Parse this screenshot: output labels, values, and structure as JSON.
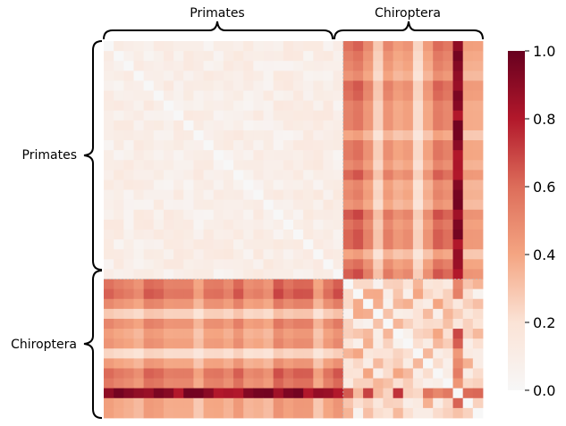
{
  "chart_data": {
    "type": "heatmap",
    "title": "",
    "group_labels_top": [
      "Primates",
      "Chiroptera"
    ],
    "group_labels_left": [
      "Primates",
      "Chiroptera"
    ],
    "group_sizes": [
      24,
      14
    ],
    "colorbar": {
      "min": 0.0,
      "max": 1.0,
      "ticks": [
        "0.0",
        "0.2",
        "0.4",
        "0.6",
        "0.8",
        "1.0"
      ],
      "colormap": "RdBu_r (white to dark red)"
    },
    "block_means": {
      "primates_primates": 0.08,
      "primates_chiroptera": 0.4,
      "chiroptera_primates": 0.4,
      "chiroptera_chiroptera": 0.3
    },
    "highlighted_row": {
      "group": "Chiroptera",
      "index": 11,
      "value_range": [
        0.7,
        1.0
      ]
    },
    "highlighted_column": {
      "group": "Chiroptera",
      "index": 11,
      "value_range": [
        0.7,
        1.0
      ]
    },
    "diagonal_value": 0.0
  }
}
